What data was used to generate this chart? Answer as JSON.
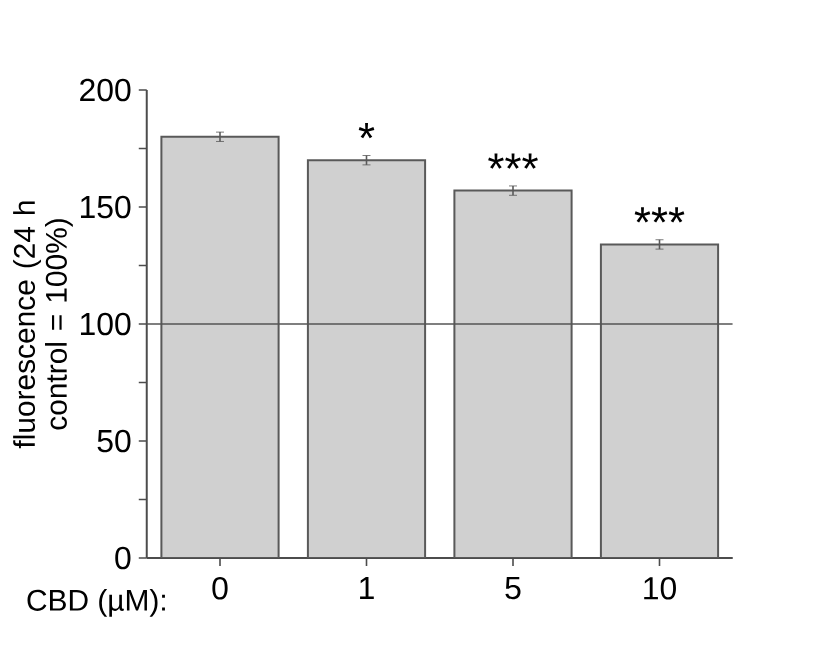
{
  "chart_data": {
    "type": "bar",
    "ylabel": "fluorescence (24 h control = 100%)",
    "xlabel": "CBD (µM):",
    "categories": [
      "0",
      "1",
      "5",
      "10"
    ],
    "values": [
      180,
      170,
      157,
      134
    ],
    "errors": [
      2,
      2,
      2,
      2
    ],
    "color": "#d0d0d0",
    "ylim": [
      0,
      200
    ],
    "yticks": [
      0,
      {
        "value": 25,
        "label": null
      },
      50,
      {
        "value": 75,
        "label": null
      },
      100,
      {
        "value": 125,
        "label": null
      },
      150,
      {
        "value": 175,
        "label": null
      },
      200
    ],
    "ref_lines": [
      {
        "axis": "y",
        "value": 100,
        "color": "#555555"
      }
    ],
    "annotations": [
      {
        "text": "*",
        "x": "1",
        "y": 172
      },
      {
        "text": "***",
        "x": "5",
        "y": 159
      },
      {
        "text": "***",
        "x": "10",
        "y": 136
      }
    ]
  }
}
